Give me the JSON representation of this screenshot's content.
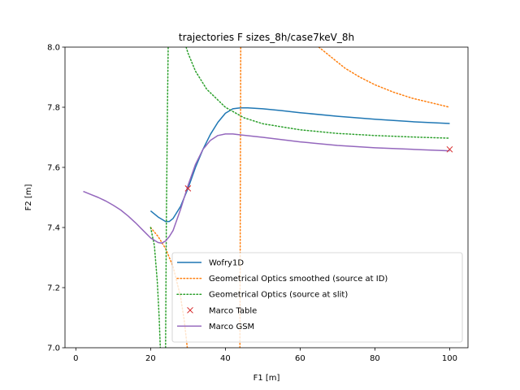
{
  "chart_data": {
    "type": "line",
    "title": "trajectories F sizes_8h/case7keV_8h",
    "xlabel": "F1 [m]",
    "ylabel": "F2 [m]",
    "xlim": [
      -2.9,
      104.9
    ],
    "ylim": [
      7.0,
      8.0
    ],
    "x_ticks": [
      0,
      20,
      40,
      60,
      80,
      100
    ],
    "y_ticks": [
      7.0,
      7.2,
      7.4,
      7.6,
      7.8,
      8.0
    ],
    "x_tick_labels": [
      "0",
      "20",
      "40",
      "60",
      "80",
      "100"
    ],
    "y_tick_labels": [
      "7.0",
      "7.2",
      "7.4",
      "7.6",
      "7.8",
      "8.0"
    ],
    "grid": false,
    "legend_position": "lower-right",
    "series": [
      {
        "name": "Wofry1D",
        "style": "solid",
        "color": "#1f77b4",
        "segments": [
          [
            [
              20,
              7.455
            ],
            [
              22,
              7.435
            ],
            [
              24,
              7.42
            ],
            [
              25,
              7.42
            ],
            [
              26,
              7.43
            ],
            [
              28,
              7.47
            ],
            [
              30,
              7.53
            ],
            [
              32,
              7.6
            ],
            [
              34,
              7.66
            ],
            [
              36,
              7.71
            ],
            [
              38,
              7.75
            ],
            [
              40,
              7.78
            ],
            [
              42,
              7.795
            ],
            [
              44,
              7.798
            ],
            [
              46,
              7.798
            ],
            [
              50,
              7.795
            ],
            [
              55,
              7.789
            ],
            [
              60,
              7.782
            ],
            [
              70,
              7.77
            ],
            [
              80,
              7.76
            ],
            [
              90,
              7.752
            ],
            [
              100,
              7.746
            ]
          ]
        ]
      },
      {
        "name": "Geometrical Optics smoothed (source at ID)",
        "style": "dotted",
        "color": "#ff7f0e",
        "segments": [
          [
            [
              20,
              7.4
            ],
            [
              22,
              7.37
            ],
            [
              24,
              7.33
            ],
            [
              26,
              7.27
            ],
            [
              28,
              7.17
            ],
            [
              29,
              7.09
            ],
            [
              29.8,
              7.0
            ]
          ],
          [
            [
              43.9,
              7.0
            ],
            [
              44.0,
              7.5
            ],
            [
              44.1,
              8.0
            ]
          ],
          [
            [
              65,
              8.0
            ],
            [
              68,
              7.97
            ],
            [
              72,
              7.93
            ],
            [
              76,
              7.9
            ],
            [
              80,
              7.875
            ],
            [
              85,
              7.85
            ],
            [
              90,
              7.83
            ],
            [
              95,
              7.815
            ],
            [
              100,
              7.8
            ]
          ]
        ]
      },
      {
        "name": "Geometrical Optics (source at slit)",
        "style": "dotted",
        "color": "#2ca02c",
        "segments": [
          [
            [
              20,
              7.4
            ],
            [
              21,
              7.34
            ],
            [
              21.8,
              7.22
            ],
            [
              22.3,
              7.1
            ],
            [
              22.6,
              7.0
            ]
          ],
          [
            [
              24.0,
              7.0
            ],
            [
              24.2,
              7.4
            ],
            [
              24.5,
              7.8
            ],
            [
              24.7,
              8.0
            ]
          ],
          [
            [
              29.5,
              8.0
            ],
            [
              30,
              7.98
            ],
            [
              32,
              7.92
            ],
            [
              35,
              7.86
            ],
            [
              40,
              7.8
            ],
            [
              45,
              7.765
            ],
            [
              50,
              7.745
            ],
            [
              60,
              7.725
            ],
            [
              70,
              7.713
            ],
            [
              80,
              7.706
            ],
            [
              90,
              7.701
            ],
            [
              100,
              7.697
            ]
          ]
        ]
      },
      {
        "name": "Marco GSM",
        "style": "solid",
        "color": "#9467bd",
        "segments": [
          [
            [
              2,
              7.52
            ],
            [
              4,
              7.51
            ],
            [
              6,
              7.5
            ],
            [
              8,
              7.488
            ],
            [
              10,
              7.474
            ],
            [
              12,
              7.458
            ],
            [
              14,
              7.438
            ],
            [
              16,
              7.415
            ],
            [
              18,
              7.39
            ],
            [
              20,
              7.365
            ],
            [
              22,
              7.35
            ],
            [
              23,
              7.348
            ],
            [
              24,
              7.355
            ],
            [
              25,
              7.37
            ],
            [
              26,
              7.39
            ],
            [
              28,
              7.46
            ],
            [
              30,
              7.54
            ],
            [
              32,
              7.61
            ],
            [
              34,
              7.66
            ],
            [
              36,
              7.69
            ],
            [
              38,
              7.706
            ],
            [
              40,
              7.711
            ],
            [
              42,
              7.711
            ],
            [
              44,
              7.708
            ],
            [
              50,
              7.7
            ],
            [
              60,
              7.685
            ],
            [
              70,
              7.673
            ],
            [
              80,
              7.665
            ],
            [
              90,
              7.66
            ],
            [
              100,
              7.655
            ]
          ]
        ]
      }
    ],
    "markers": {
      "name": "Marco Table",
      "symbol": "x",
      "color": "#d62728",
      "points": [
        [
          30,
          7.53
        ],
        [
          100,
          7.66
        ]
      ]
    },
    "legend": [
      {
        "label": "Wofry1D",
        "kind": "solid",
        "color": "#1f77b4"
      },
      {
        "label": "Geometrical Optics smoothed (source at ID)",
        "kind": "dotted",
        "color": "#ff7f0e"
      },
      {
        "label": "Geometrical Optics (source at slit)",
        "kind": "dotted",
        "color": "#2ca02c"
      },
      {
        "label": "Marco Table",
        "kind": "marker",
        "color": "#d62728"
      },
      {
        "label": "Marco GSM",
        "kind": "solid",
        "color": "#9467bd"
      }
    ]
  }
}
